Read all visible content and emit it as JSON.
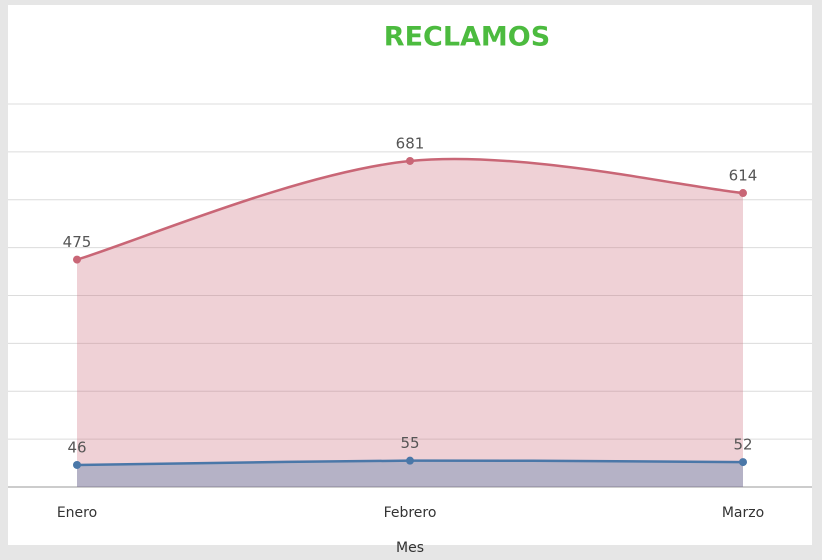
{
  "chart_data": {
    "type": "area",
    "title": "RECLAMOS",
    "x_label": "Mes",
    "categories": [
      "Enero",
      "Febrero",
      "Marzo"
    ],
    "series": [
      {
        "color": "#c96676",
        "values": [
          475,
          681,
          614
        ]
      },
      {
        "color": "#4a77a8",
        "values": [
          46,
          55,
          52
        ]
      }
    ],
    "ylim": [
      0,
      800
    ],
    "yticks": [
      0,
      100,
      200,
      300,
      400,
      500,
      600,
      700,
      800
    ],
    "grid": true,
    "smooth": true
  }
}
